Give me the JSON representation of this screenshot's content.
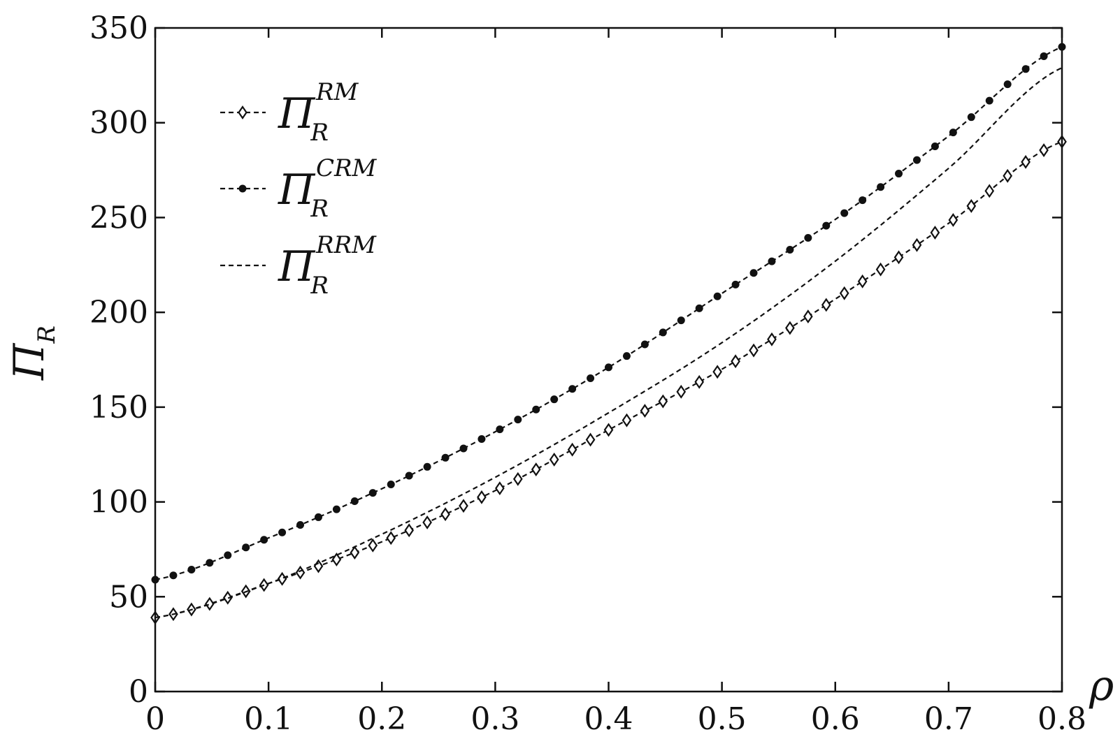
{
  "chart_data": {
    "type": "line",
    "xlabel": "ρ",
    "ylabel": {
      "main": "Π",
      "sub": "R"
    },
    "xlim": [
      0,
      0.8
    ],
    "ylim": [
      0,
      350
    ],
    "xticks": [
      "0",
      "0.1",
      "0.2",
      "0.3",
      "0.4",
      "0.5",
      "0.6",
      "0.7",
      "0.8"
    ],
    "yticks": [
      "0",
      "50",
      "100",
      "150",
      "200",
      "250",
      "300",
      "350"
    ],
    "grid": false,
    "legend_position": "top-left",
    "x": [
      0,
      0.1,
      0.2,
      0.3,
      0.4,
      0.5,
      0.6,
      0.7,
      0.8
    ],
    "series": [
      {
        "legend_main": "Π",
        "legend_sub": "R",
        "legend_sup": "RM",
        "marker": "diamond",
        "line": "dashed",
        "values": [
          39,
          57,
          79,
          106,
          138,
          170,
          207,
          247,
          290
        ]
      },
      {
        "legend_main": "Π",
        "legend_sub": "R",
        "legend_sup": "CRM",
        "marker": "filled-circle",
        "line": "dashed",
        "values": [
          59,
          81,
          107,
          137,
          171,
          210,
          249,
          293,
          340
        ]
      },
      {
        "legend_main": "Π",
        "legend_sub": "R",
        "legend_sup": "RRM",
        "marker": "none",
        "line": "dashed",
        "values": [
          39,
          57,
          83,
          113,
          147,
          184,
          227,
          276,
          329
        ]
      }
    ]
  }
}
